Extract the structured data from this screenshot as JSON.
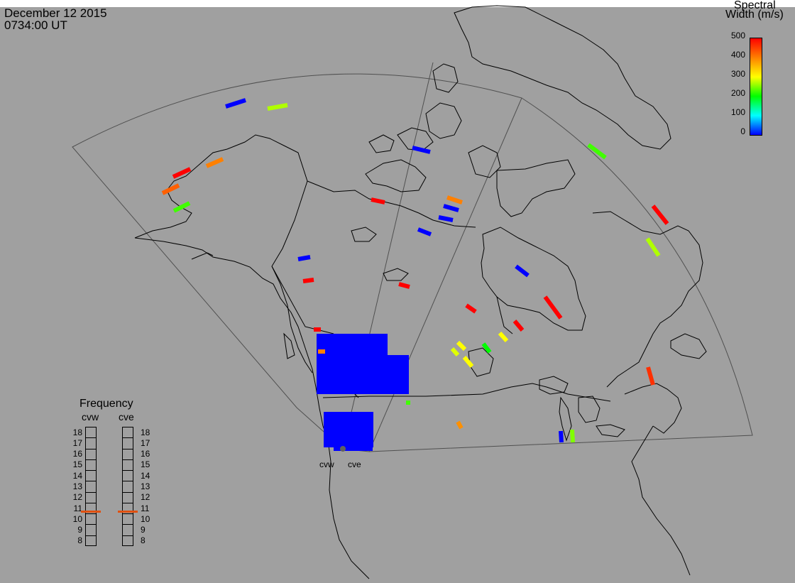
{
  "header": {
    "date": "December 12 2015",
    "time": "0734:00 UT"
  },
  "colorbar": {
    "title_line1": "Spectral",
    "title_line2": "Width (m/s)",
    "ticks": [
      "500",
      "400",
      "300",
      "200",
      "100",
      "0"
    ],
    "colors": [
      "#ff0000",
      "#ff8000",
      "#ffff00",
      "#00ff00",
      "#00ffff",
      "#0000ff"
    ]
  },
  "frequency": {
    "title": "Frequency",
    "radars": [
      "cvw",
      "cve"
    ],
    "ticks": [
      "18",
      "17",
      "16",
      "15",
      "14",
      "13",
      "12",
      "11",
      "10",
      "9",
      "8"
    ],
    "selected_mhz": [
      10.7,
      10.7
    ]
  },
  "sites": {
    "cvw": "cvw",
    "cve": "cve"
  },
  "colors": {
    "background": "#a0a0a0",
    "coastline": "#000000",
    "fov": "#505050",
    "freq_marker": "#e05010"
  }
}
